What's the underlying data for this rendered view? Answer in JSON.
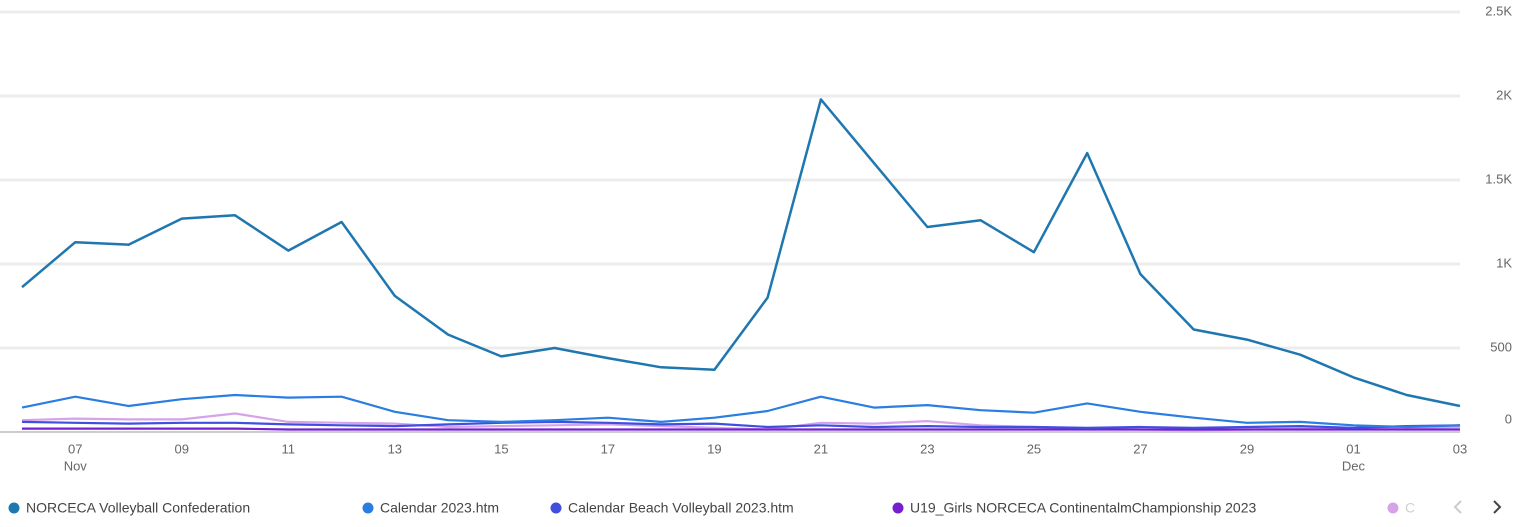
{
  "chart_data": {
    "type": "line",
    "categories": [
      null,
      "07",
      null,
      "09",
      null,
      "11",
      null,
      "13",
      null,
      "15",
      null,
      "17",
      null,
      "19",
      null,
      "21",
      null,
      "23",
      null,
      "25",
      null,
      "27",
      null,
      "29",
      null,
      "01",
      null,
      "03"
    ],
    "month_labels": [
      null,
      "Nov",
      null,
      null,
      null,
      null,
      null,
      null,
      null,
      null,
      null,
      null,
      null,
      null,
      null,
      null,
      null,
      null,
      null,
      null,
      null,
      null,
      null,
      null,
      null,
      "Dec",
      null,
      null
    ],
    "series": [
      {
        "name": "NORCECA Volleyball Confederation",
        "color": "#1f77b0",
        "values": [
          862,
          1130,
          1115,
          1270,
          1290,
          1080,
          1250,
          810,
          580,
          450,
          500,
          440,
          385,
          370,
          800,
          1980,
          1600,
          1220,
          1260,
          1070,
          1660,
          940,
          610,
          550,
          460,
          325,
          220,
          155
        ]
      },
      {
        "name": "Calendar 2023.htm",
        "color": "#2a7de1",
        "values": [
          145,
          210,
          155,
          195,
          220,
          205,
          210,
          120,
          70,
          60,
          70,
          85,
          60,
          85,
          125,
          210,
          145,
          160,
          130,
          115,
          170,
          120,
          85,
          55,
          60,
          40,
          30,
          40
        ]
      },
      {
        "name": "Calendar Beach Volleyball 2023.htm",
        "color": "#3f4fe0",
        "values": [
          60,
          55,
          50,
          55,
          55,
          45,
          40,
          35,
          45,
          55,
          60,
          55,
          45,
          50,
          30,
          40,
          30,
          35,
          30,
          30,
          25,
          30,
          25,
          30,
          35,
          25,
          35,
          40
        ]
      },
      {
        "name": "U19_Girls NORCECA ContinentalmChampionship 2023",
        "color": "#7420d0",
        "values": [
          20,
          20,
          20,
          20,
          20,
          15,
          15,
          15,
          15,
          15,
          15,
          15,
          15,
          15,
          15,
          15,
          15,
          15,
          15,
          15,
          15,
          15,
          15,
          15,
          15,
          15,
          15,
          15
        ]
      },
      {
        "name": "C",
        "color": "#d6a3ea",
        "values": [
          70,
          80,
          75,
          75,
          110,
          60,
          55,
          50,
          30,
          35,
          40,
          45,
          35,
          25,
          15,
          55,
          50,
          65,
          40,
          30,
          20,
          15,
          10,
          15,
          20,
          20,
          25,
          30
        ]
      }
    ],
    "ylim": [
      0,
      2500
    ],
    "yticks": [
      0,
      500,
      {
        "value": 1000,
        "label": "1K"
      },
      {
        "value": 1500,
        "label": "1.5K"
      },
      {
        "value": 2000,
        "label": "2K"
      },
      {
        "value": 2500,
        "label": "2.5K"
      }
    ],
    "grid": true
  }
}
